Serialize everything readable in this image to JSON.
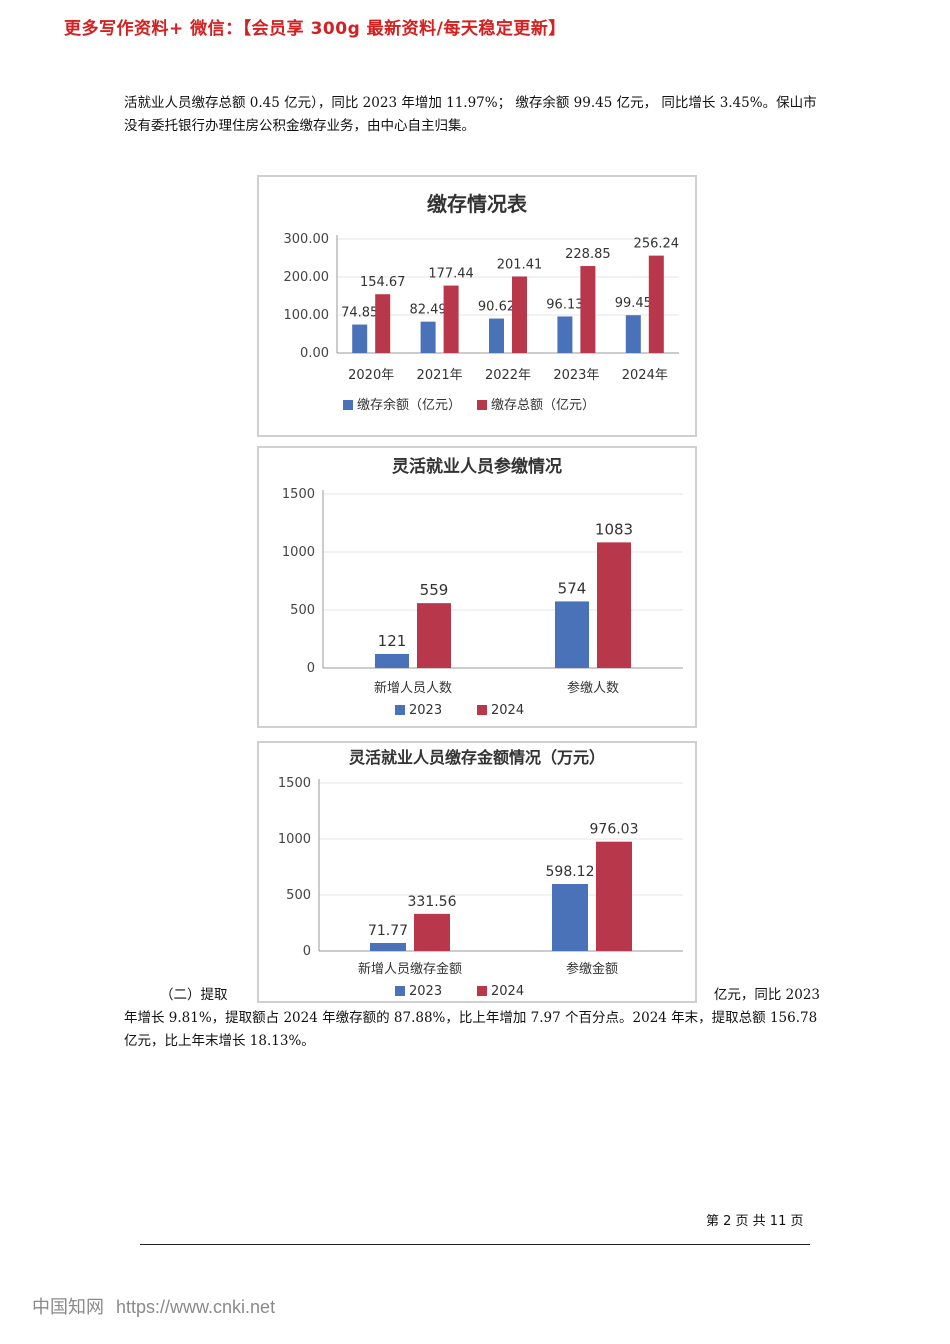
{
  "banner": "更多写作资料+ 微信：【会员享 300g 最新资料/每天稳定更新】",
  "paragraphs": {
    "p1": "活就业人员缴存总额 0.45 亿元），同比 2023 年增加 11.97%； 缴存余额 99.45 亿元， 同比增长 3.45%。保山市没有委托银行办理住房公积金缴存业务，由中心自主归集。",
    "p2_left": "（二）提取",
    "p2_right": "亿元，同比 2023",
    "p2_rest": "年增长 9.81%，提取额占 2024 年缴存额的 87.88%，比上年增加 7.97 个百分点。2024 年末，提取总额 156.78 亿元，比上年末增长 18.13%。"
  },
  "footer": {
    "page": "第 2 页 共 11 页",
    "brand": "中国知网",
    "url": "https://www.cnki.net"
  },
  "colors": {
    "blue": "#4a72b8",
    "red": "#b8374a"
  },
  "chart_data": [
    {
      "type": "bar",
      "title": "缴存情况表",
      "categories": [
        "2020年",
        "2021年",
        "2022年",
        "2023年",
        "2024年"
      ],
      "series": [
        {
          "name": "缴存余额（亿元）",
          "values": [
            74.85,
            82.49,
            90.62,
            96.13,
            99.45
          ],
          "labels": [
            "74.85",
            "82.49",
            "90.62",
            "96.13",
            "99.45"
          ]
        },
        {
          "name": "缴存总额（亿元）",
          "values": [
            154.67,
            177.44,
            201.41,
            228.85,
            256.24
          ],
          "labels": [
            "154.67",
            "177.44",
            "201.41",
            "228.85",
            "256.24"
          ]
        }
      ],
      "yticks": [
        "0.00",
        "100.00",
        "200.00",
        "300.00"
      ],
      "ylim": [
        0,
        300
      ]
    },
    {
      "type": "bar",
      "title": "灵活就业人员参缴情况",
      "categories": [
        "新增人员人数",
        "参缴人数"
      ],
      "series": [
        {
          "name": "2023",
          "values": [
            121,
            574
          ],
          "labels": [
            "121",
            "574"
          ]
        },
        {
          "name": "2024",
          "values": [
            559,
            1083
          ],
          "labels": [
            "559",
            "1083"
          ]
        }
      ],
      "yticks": [
        "0",
        "500",
        "1000",
        "1500"
      ],
      "ylim": [
        0,
        1500
      ]
    },
    {
      "type": "bar",
      "title": "灵活就业人员缴存金额情况（万元）",
      "categories": [
        "新增人员缴存金额",
        "参缴金额"
      ],
      "series": [
        {
          "name": "2023",
          "values": [
            71.77,
            598.12
          ],
          "labels": [
            "71.77",
            "598.12"
          ]
        },
        {
          "name": "2024",
          "values": [
            331.56,
            976.03
          ],
          "labels": [
            "331.56",
            "976.03"
          ]
        }
      ],
      "yticks": [
        "0",
        "500",
        "1000",
        "1500"
      ],
      "ylim": [
        0,
        1500
      ]
    }
  ]
}
